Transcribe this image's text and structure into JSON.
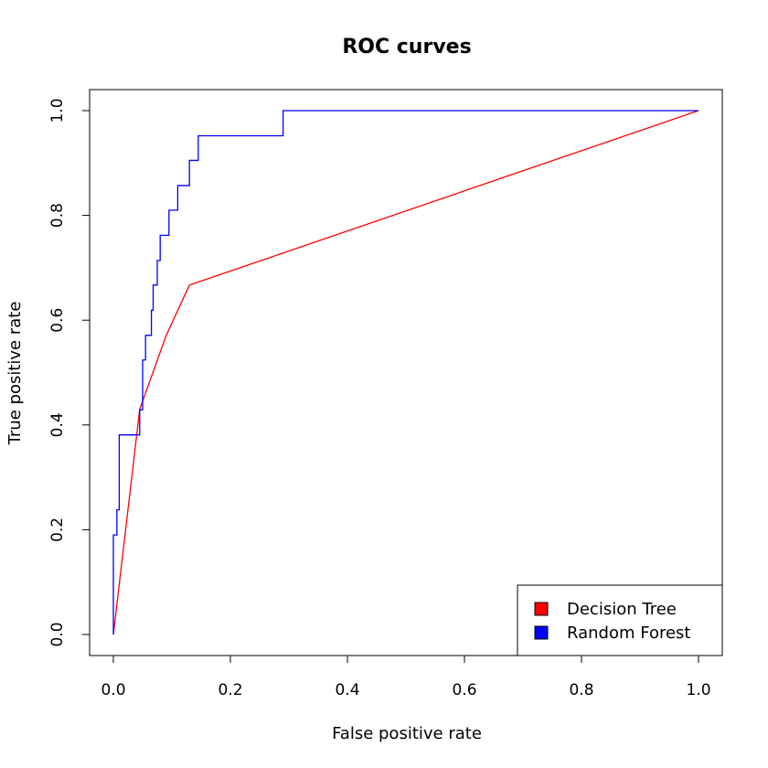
{
  "chart_data": {
    "type": "line",
    "title": "ROC curves",
    "xlabel": "False positive rate",
    "ylabel": "True positive rate",
    "xlim": [
      0,
      1
    ],
    "ylim": [
      0,
      1
    ],
    "x_ticks": [
      "0.0",
      "0.2",
      "0.4",
      "0.6",
      "0.8",
      "1.0"
    ],
    "y_ticks": [
      "0.0",
      "0.2",
      "0.4",
      "0.6",
      "0.8",
      "1.0"
    ],
    "grid": false,
    "legend_position": "bottom-right",
    "series": [
      {
        "name": "Decision Tree",
        "color": "#ff0000",
        "x": [
          0.0,
          0.045,
          0.09,
          0.13,
          1.0
        ],
        "y": [
          0.0,
          0.43,
          0.57,
          0.667,
          1.0
        ]
      },
      {
        "name": "Random Forest",
        "color": "#0000ff",
        "x": [
          0.0,
          0.0,
          0.006,
          0.006,
          0.01,
          0.01,
          0.045,
          0.045,
          0.05,
          0.05,
          0.055,
          0.055,
          0.065,
          0.065,
          0.068,
          0.068,
          0.075,
          0.075,
          0.08,
          0.08,
          0.095,
          0.095,
          0.11,
          0.11,
          0.13,
          0.13,
          0.145,
          0.145,
          0.29,
          0.29,
          1.0
        ],
        "y": [
          0.0,
          0.19,
          0.19,
          0.238,
          0.238,
          0.381,
          0.381,
          0.429,
          0.429,
          0.524,
          0.524,
          0.571,
          0.571,
          0.619,
          0.619,
          0.667,
          0.667,
          0.714,
          0.714,
          0.762,
          0.762,
          0.81,
          0.81,
          0.857,
          0.857,
          0.905,
          0.905,
          0.952,
          0.952,
          1.0,
          1.0
        ]
      }
    ]
  }
}
